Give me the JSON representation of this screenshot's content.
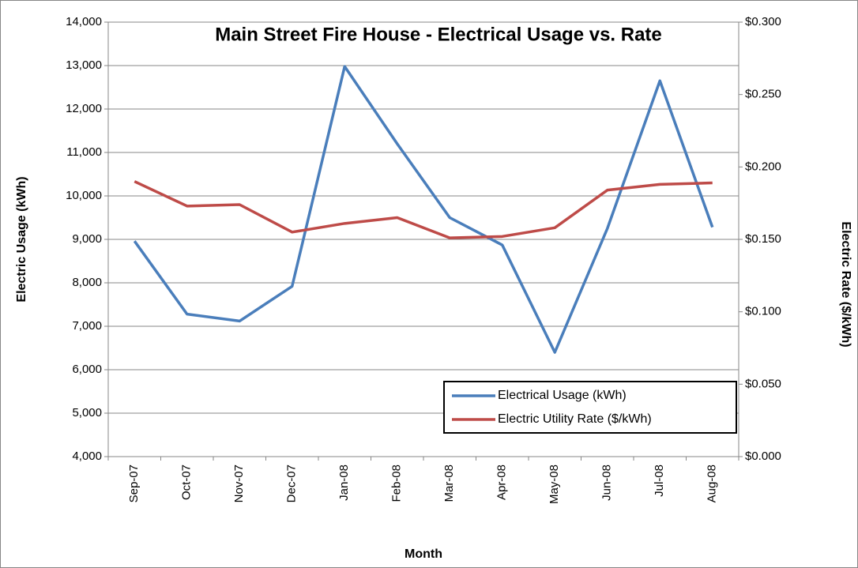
{
  "chart_data": {
    "type": "line",
    "title": "Main Street Fire House - Electrical Usage vs. Rate",
    "x_label": "Month",
    "y_label": "Electric Usage (kWh)",
    "y2_label": "Electric Rate ($/kWh)",
    "categories": [
      "Sep-07",
      "Oct-07",
      "Nov-07",
      "Dec-07",
      "Jan-08",
      "Feb-08",
      "Mar-08",
      "Apr-08",
      "May-08",
      "Jun-08",
      "Jul-08",
      "Aug-08"
    ],
    "series": [
      {
        "name": "Electrical Usage (kWh)",
        "color": "#4a7ebb",
        "values": [
          8960,
          7280,
          7120,
          7920,
          12980,
          11200,
          9500,
          8870,
          6400,
          9250,
          12650,
          9280
        ]
      },
      {
        "name": "Electric Utility Rate ($/kWh)",
        "color": "#be4b48",
        "axis": "y2",
        "values": [
          0.19,
          0.173,
          0.174,
          0.155,
          0.161,
          0.165,
          0.151,
          0.152,
          0.158,
          0.184,
          0.188,
          0.189
        ]
      }
    ],
    "ylim": [
      4000,
      14000
    ],
    "yticks": [
      {
        "value": 4000,
        "label": "4,000"
      },
      {
        "value": 5000,
        "label": "5,000"
      },
      {
        "value": 6000,
        "label": "6,000"
      },
      {
        "value": 7000,
        "label": "7,000"
      },
      {
        "value": 8000,
        "label": "8,000"
      },
      {
        "value": 9000,
        "label": "9,000"
      },
      {
        "value": 10000,
        "label": "10,000"
      },
      {
        "value": 11000,
        "label": "11,000"
      },
      {
        "value": 12000,
        "label": "12,000"
      },
      {
        "value": 13000,
        "label": "13,000"
      },
      {
        "value": 14000,
        "label": "14,000"
      }
    ],
    "y2lim": [
      0,
      0.3
    ],
    "y2ticks": [
      {
        "value": 0,
        "label": "$0.000"
      },
      {
        "value": 0.05,
        "label": "$0.050"
      },
      {
        "value": 0.1,
        "label": "$0.100"
      },
      {
        "value": 0.15,
        "label": "$0.150"
      },
      {
        "value": 0.2,
        "label": "$0.200"
      },
      {
        "value": 0.25,
        "label": "$0.250"
      },
      {
        "value": 0.3,
        "label": "$0.300"
      }
    ],
    "grid": true,
    "legend": "lower right"
  }
}
